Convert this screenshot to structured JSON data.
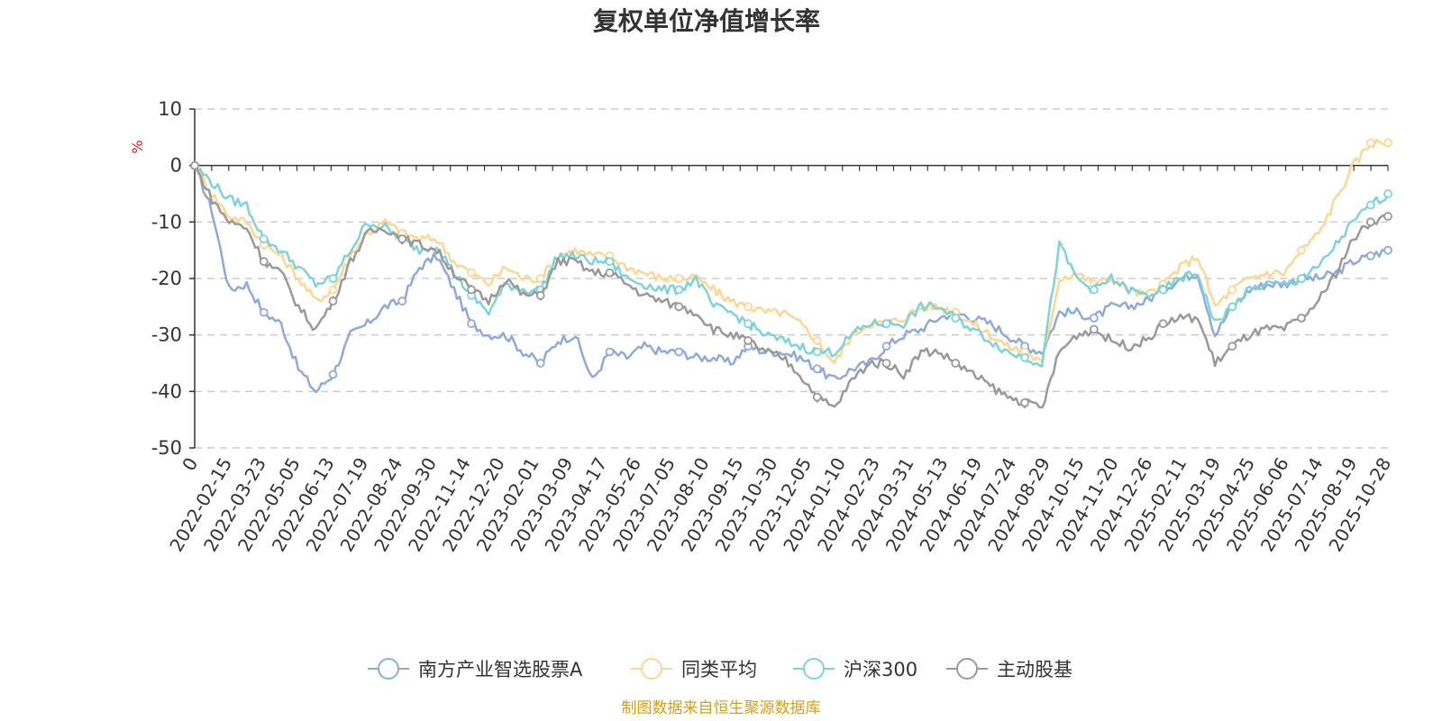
{
  "chart_data": {
    "type": "line",
    "title": "复权单位净值增长率",
    "ylabel": "%",
    "xlabel": "",
    "ylim": [
      -50,
      10
    ],
    "yticks": [
      10,
      0,
      -10,
      -20,
      -30,
      -40,
      -50
    ],
    "grid": true,
    "legend_position": "bottom",
    "x_tick_labels": [
      "0",
      "2022-02-15",
      "2022-03-23",
      "2022-05-05",
      "2022-06-13",
      "2022-07-19",
      "2022-08-24",
      "2022-09-30",
      "2022-11-14",
      "2022-12-20",
      "2023-02-01",
      "2023-03-09",
      "2023-04-17",
      "2023-05-26",
      "2023-07-05",
      "2023-08-10",
      "2023-09-15",
      "2023-10-30",
      "2023-12-05",
      "2024-01-10",
      "2024-02-23",
      "2024-03-31",
      "2024-05-13",
      "2024-06-19",
      "2024-07-24",
      "2024-08-29",
      "2024-10-15",
      "2024-11-20",
      "2024-12-26",
      "2025-02-11",
      "2025-03-19",
      "2025-04-25",
      "2025-06-06",
      "2025-07-14",
      "2025-08-19",
      "2025-10-28"
    ],
    "series": [
      {
        "name": "南方产业智选股票A",
        "color": "#8ea9db",
        "values": [
          0,
          -8,
          -22,
          -21,
          -26,
          -28,
          -36,
          -40,
          -37,
          -30,
          -28,
          -25,
          -24,
          -18,
          -16,
          -22,
          -28,
          -30,
          -30,
          -33,
          -35,
          -31,
          -30,
          -38,
          -33,
          -34,
          -32,
          -33,
          -33,
          -34,
          -34,
          -35,
          -32,
          -33,
          -33,
          -34,
          -36,
          -38,
          -36,
          -35,
          -32,
          -30,
          -29,
          -27,
          -26,
          -27,
          -28,
          -30,
          -32,
          -33,
          -26,
          -26,
          -27,
          -25,
          -25,
          -24,
          -22,
          -20,
          -19,
          -30,
          -25,
          -22,
          -21,
          -21,
          -20,
          -20,
          -19,
          -17,
          -16,
          -15
        ]
      },
      {
        "name": "同类平均",
        "color": "#ffd591",
        "values": [
          0,
          -5,
          -9,
          -10,
          -14,
          -16,
          -20,
          -24,
          -22,
          -16,
          -12,
          -10,
          -12,
          -13,
          -13,
          -17,
          -19,
          -21,
          -18,
          -20,
          -20,
          -16,
          -15,
          -16,
          -16,
          -18,
          -19,
          -20,
          -20,
          -20,
          -22,
          -24,
          -25,
          -26,
          -26,
          -28,
          -31,
          -35,
          -30,
          -28,
          -28,
          -27,
          -25,
          -25,
          -26,
          -28,
          -30,
          -32,
          -33,
          -35,
          -20,
          -19,
          -21,
          -20,
          -22,
          -23,
          -21,
          -18,
          -16,
          -25,
          -22,
          -20,
          -19,
          -19,
          -15,
          -12,
          -6,
          0,
          4,
          4
        ]
      },
      {
        "name": "沪深300",
        "color": "#7ed3d8",
        "values": [
          0,
          -3,
          -6,
          -7,
          -13,
          -15,
          -18,
          -21,
          -20,
          -15,
          -10,
          -11,
          -13,
          -15,
          -14,
          -19,
          -23,
          -26,
          -21,
          -22,
          -22,
          -16,
          -16,
          -17,
          -17,
          -20,
          -21,
          -22,
          -22,
          -20,
          -25,
          -26,
          -28,
          -30,
          -31,
          -32,
          -33,
          -33,
          -30,
          -28,
          -28,
          -28,
          -25,
          -25,
          -27,
          -29,
          -31,
          -33,
          -34,
          -35,
          -14,
          -20,
          -22,
          -20,
          -22,
          -23,
          -22,
          -20,
          -19,
          -28,
          -25,
          -22,
          -21,
          -21,
          -20,
          -18,
          -14,
          -10,
          -7,
          -5
        ]
      },
      {
        "name": "主动股基",
        "color": "#999999",
        "values": [
          0,
          -6,
          -10,
          -11,
          -17,
          -19,
          -25,
          -29,
          -24,
          -17,
          -12,
          -11,
          -13,
          -14,
          -15,
          -19,
          -22,
          -24,
          -20,
          -23,
          -23,
          -17,
          -17,
          -19,
          -19,
          -21,
          -23,
          -24,
          -25,
          -26,
          -29,
          -30,
          -31,
          -33,
          -34,
          -37,
          -41,
          -43,
          -38,
          -35,
          -35,
          -37,
          -33,
          -33,
          -35,
          -37,
          -39,
          -41,
          -42,
          -43,
          -33,
          -30,
          -29,
          -31,
          -32,
          -31,
          -28,
          -27,
          -27,
          -35,
          -32,
          -30,
          -29,
          -29,
          -27,
          -24,
          -19,
          -13,
          -10,
          -9
        ]
      }
    ]
  },
  "footer_text": "制图数据来自恒生聚源数据库"
}
